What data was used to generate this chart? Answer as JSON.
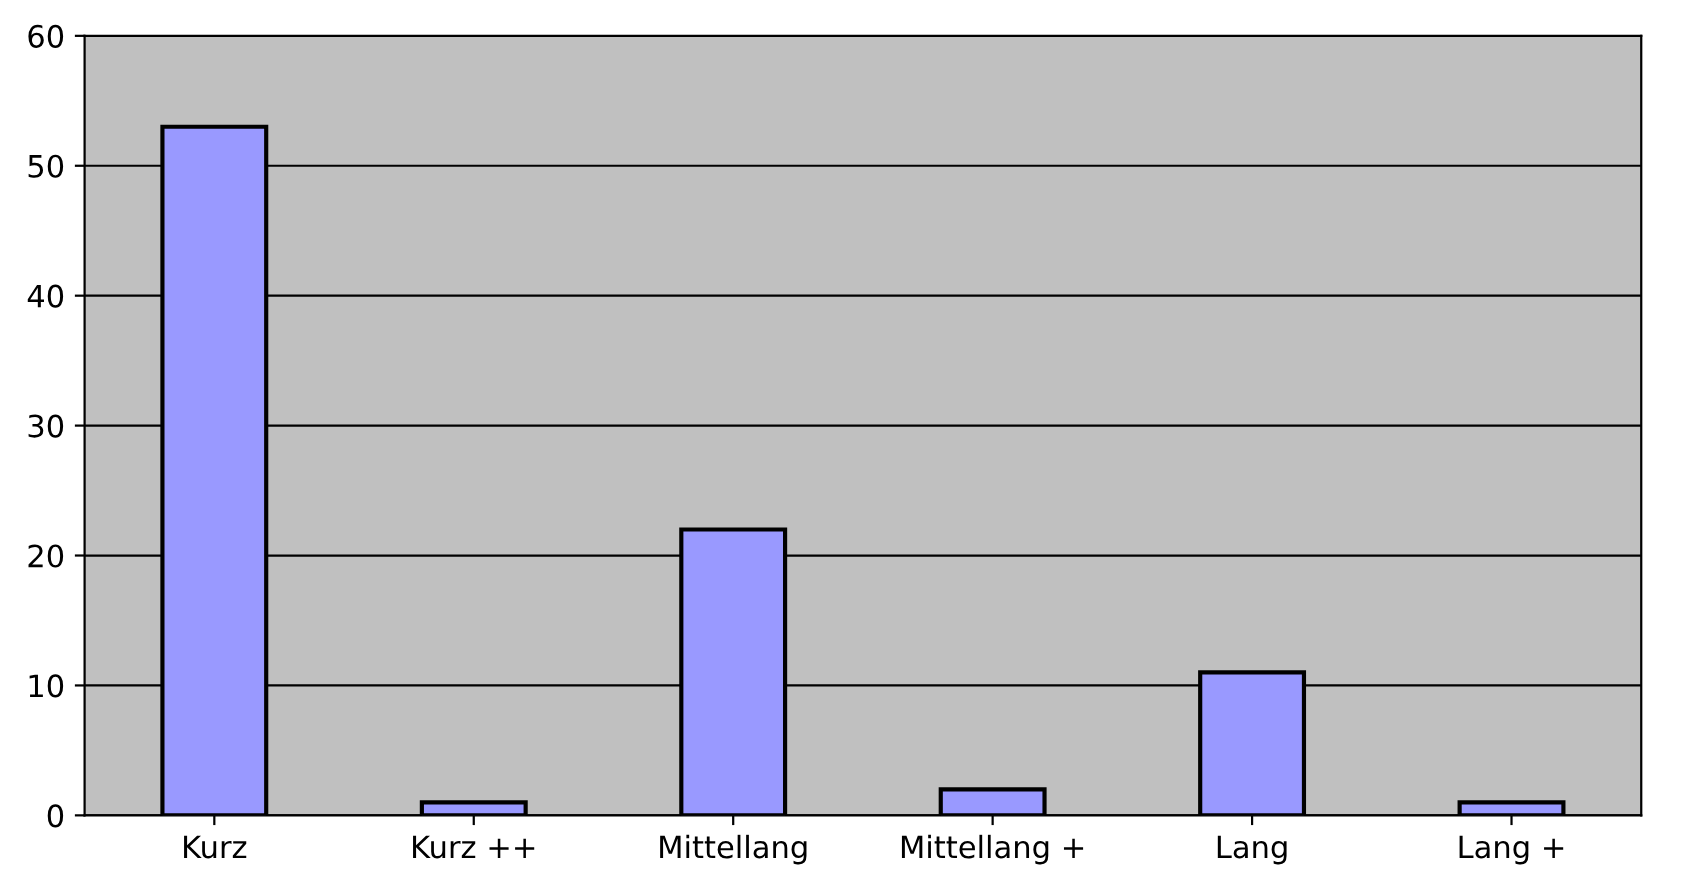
{
  "chart_data": {
    "type": "bar",
    "categories": [
      "Kurz",
      "Kurz ++",
      "Mittellang",
      "Mittellang +",
      "Lang",
      "Lang +"
    ],
    "values": [
      53,
      1,
      22,
      2,
      11,
      1
    ],
    "color": "#9999ff",
    "ylim": [
      0,
      60
    ],
    "yticks": [
      0,
      10,
      20,
      30,
      40,
      50,
      60
    ],
    "grid": "y"
  }
}
